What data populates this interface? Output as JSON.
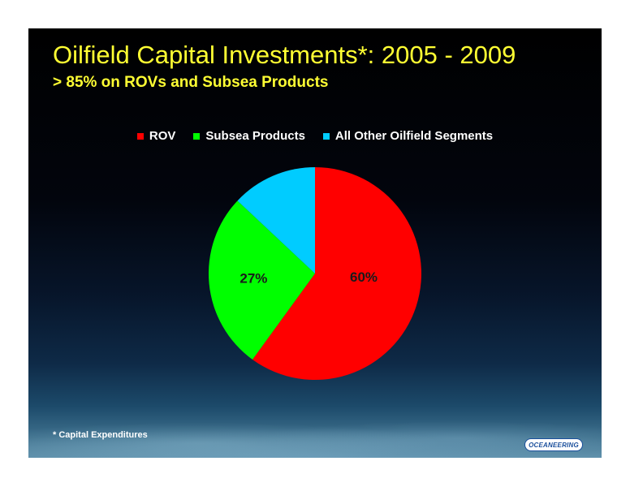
{
  "slide": {
    "title": "Oilfield Capital Investments*:  2005 - 2009",
    "subtitle": "> 85% on ROVs and Subsea Products",
    "footnote": "* Capital Expenditures",
    "logo_text": "OCEANEERING"
  },
  "colors": {
    "title": "#ffff33",
    "rov": "#ff0000",
    "subsea": "#00ff00",
    "other": "#00ccff"
  },
  "chart_data": {
    "type": "pie",
    "title": "",
    "legend_position": "top",
    "series": [
      {
        "name": "ROV",
        "value": 60,
        "label": "60%",
        "color": "#ff0000"
      },
      {
        "name": "Subsea Products",
        "value": 27,
        "label": "27%",
        "color": "#00ff00"
      },
      {
        "name": "All Other Oilfield Segments",
        "value": 13,
        "label": "",
        "color": "#00ccff"
      }
    ]
  }
}
